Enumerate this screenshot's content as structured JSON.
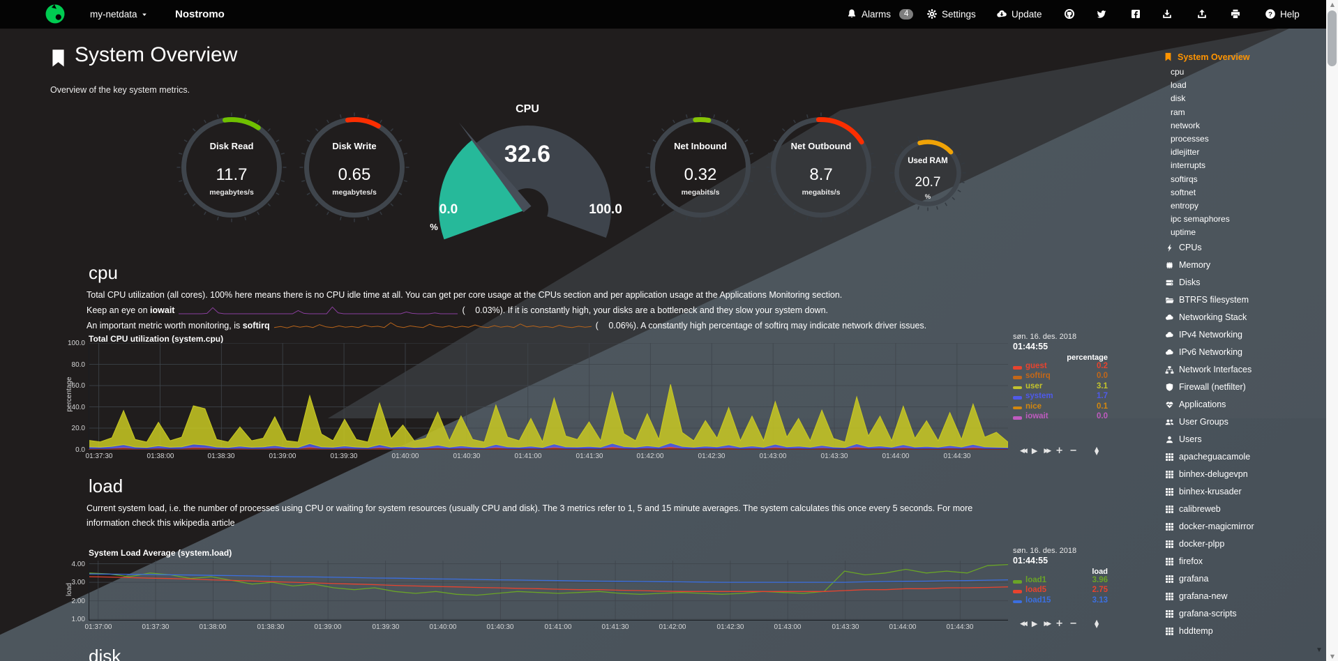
{
  "navbar": {
    "brand_menu_label": "my-netdata",
    "hostname": "Nostromo",
    "items": [
      {
        "name": "alarms",
        "icon": "bell-icon",
        "label": "Alarms",
        "badge": "4"
      },
      {
        "name": "settings",
        "icon": "gear-icon",
        "label": "Settings"
      },
      {
        "name": "update",
        "icon": "cloud-download-icon",
        "label": "Update"
      },
      {
        "name": "github",
        "icon": "github-icon",
        "label": ""
      },
      {
        "name": "twitter",
        "icon": "twitter-icon",
        "label": ""
      },
      {
        "name": "facebook",
        "icon": "facebook-icon",
        "label": ""
      },
      {
        "name": "export-snapshot",
        "icon": "download-icon",
        "label": ""
      },
      {
        "name": "import-snapshot",
        "icon": "upload-icon",
        "label": ""
      },
      {
        "name": "print",
        "icon": "print-icon",
        "label": ""
      },
      {
        "name": "help",
        "icon": "question-icon",
        "label": "Help"
      }
    ]
  },
  "page": {
    "title": "System Overview",
    "subtitle": "Overview of the key system metrics."
  },
  "gauges": [
    {
      "name": "disk-read",
      "title": "Disk Read",
      "value": "11.7",
      "units": "megabytes/s",
      "arc_color": "#6fc000",
      "arc_start": -8,
      "arc_end": 34,
      "small": false
    },
    {
      "name": "disk-write",
      "title": "Disk Write",
      "value": "0.65",
      "units": "megabytes/s",
      "arc_color": "#fb2e01",
      "arc_start": -8,
      "arc_end": 30,
      "small": false
    },
    {
      "name": "net-inbound",
      "title": "Net Inbound",
      "value": "0.32",
      "units": "megabits/s",
      "arc_color": "#85c305",
      "arc_start": -6,
      "arc_end": 10,
      "small": false
    },
    {
      "name": "net-outbound",
      "title": "Net Outbound",
      "value": "8.7",
      "units": "megabits/s",
      "arc_color": "#fb2e01",
      "arc_start": -3,
      "arc_end": 58,
      "small": false
    },
    {
      "name": "used-ram",
      "title": "Used RAM",
      "value": "20.7",
      "units": "%",
      "arc_color": "#f0a306",
      "arc_start": -15,
      "arc_end": 48,
      "small": true
    }
  ],
  "cpu_gauge": {
    "title": "CPU",
    "value": "32.6",
    "min_label": "0.0",
    "max_label": "100.0",
    "units": "%",
    "percent": 32.6,
    "fill_color": "#26b99a",
    "ring_color": "#3e444c",
    "needle_color": "#474e58"
  },
  "cpu_section": {
    "heading": "cpu",
    "p1": "Total CPU utilization (all cores). 100% here means there is no CPU idle time at all. You can get per core usage at the CPUs section and per application usage at the Applications Monitoring section.",
    "p2_pre": "Keep an eye on ",
    "p2_kw": "iowait",
    "p2_open": "(",
    "p2_val": "0.03%",
    "p2_post": "). If it is constantly high, your disks are a bottleneck and they slow your system down.",
    "p3_pre": "An important metric worth monitoring, is ",
    "p3_kw": "softirq",
    "p3_open": "(",
    "p3_val": "0.06%",
    "p3_post": "). A constantly high percentage of softirq may indicate network driver issues."
  },
  "load_section": {
    "heading": "load",
    "p1": "Current system load, i.e. the number of processes using CPU or waiting for system resources (usually CPU and disk). The 3 metrics refer to 1, 5 and 15 minute averages. The system calculates this once every 5 seconds. For more",
    "p2": "information check this wikipedia article"
  },
  "disk_section": {
    "heading": "disk"
  },
  "chart_data": [
    {
      "name": "system-cpu",
      "type": "area",
      "stacked": true,
      "title": "Total CPU utilization (system.cpu)",
      "xlabel": "",
      "ylabel": "percentage",
      "ylim": [
        0,
        100
      ],
      "yticks": [
        {
          "v": 100,
          "label": "100.0"
        },
        {
          "v": 80,
          "label": "80.0"
        },
        {
          "v": 60,
          "label": "60.0"
        },
        {
          "v": 40,
          "label": "40.0"
        },
        {
          "v": 20,
          "label": "20.0"
        },
        {
          "v": 0,
          "label": "0.0"
        }
      ],
      "xtick_labels": [
        "01:37:30",
        "01:38:00",
        "01:38:30",
        "01:39:00",
        "01:39:30",
        "01:40:00",
        "01:40:30",
        "01:41:00",
        "01:41:30",
        "01:42:00",
        "01:42:30",
        "01:43:00",
        "01:43:30",
        "01:44:00",
        "01:44:30"
      ],
      "grid": true,
      "legend_position": "right",
      "legend": {
        "date": "søn. 16. des. 2018",
        "time": "01:44:55",
        "units": "percentage",
        "entries": [
          {
            "name": "guest",
            "value": "0.2",
            "color": "#e8432e"
          },
          {
            "name": "softirq",
            "value": "0.0",
            "color": "#c36718"
          },
          {
            "name": "user",
            "value": "3.1",
            "color": "#c3c32c"
          },
          {
            "name": "system",
            "value": "1.7",
            "color": "#4f5aea"
          },
          {
            "name": "nice",
            "value": "0.1",
            "color": "#d2870f"
          },
          {
            "name": "iowait",
            "value": "0.0",
            "color": "#bf5bbf"
          }
        ]
      },
      "series": [
        {
          "name": "guest",
          "color": "#e8432e",
          "values": [
            1,
            0.8,
            1.2,
            2,
            0.9,
            0.7,
            1.5,
            0.8,
            1,
            2.2,
            1.8,
            0.9,
            0.7,
            1.3,
            0.8,
            1,
            1.6,
            0.8,
            0.7,
            2.5,
            1,
            0.8,
            1.4,
            0.9,
            0.7,
            2,
            0.8,
            1.2,
            0.7,
            1,
            1.8,
            0.8,
            1.5,
            0.9,
            0.7,
            2.1,
            1,
            0.8,
            1.3,
            0.7,
            2.3,
            1,
            0.9,
            1.2,
            0.8,
            2.6,
            1.1,
            0.8,
            1.5,
            0.9,
            2.8,
            1.2,
            0.8,
            1.3,
            1,
            1.9,
            0.8,
            1.4,
            0.8,
            2.2,
            1,
            1.3,
            0.8,
            1.7,
            0.9,
            0.7,
            2.4,
            1,
            1.4,
            0.8,
            2,
            0.9,
            1.2,
            0.8,
            1.6,
            0.9,
            2.1,
            1,
            0.8,
            0.2
          ]
        },
        {
          "name": "system",
          "color": "#4f5aea",
          "values": [
            1.5,
            1.3,
            1.7,
            2.5,
            1.4,
            1.2,
            2,
            1.3,
            1.5,
            2.8,
            2.4,
            1.4,
            1.2,
            1.8,
            1.3,
            1.5,
            2.1,
            1.3,
            1.2,
            3,
            1.5,
            1.3,
            1.9,
            1.4,
            1.2,
            2.5,
            1.3,
            1.7,
            1.2,
            1.5,
            2.3,
            1.3,
            2,
            1.4,
            1.2,
            2.6,
            1.5,
            1.3,
            1.8,
            1.2,
            2.8,
            1.5,
            1.4,
            1.7,
            1.3,
            3.1,
            1.6,
            1.3,
            2,
            1.4,
            3.3,
            1.7,
            1.3,
            1.8,
            1.5,
            2.4,
            1.3,
            1.9,
            1.3,
            2.7,
            1.5,
            1.8,
            1.3,
            2.2,
            1.4,
            1.2,
            2.9,
            1.5,
            1.9,
            1.3,
            2.5,
            1.4,
            1.7,
            1.3,
            2.1,
            1.4,
            2.6,
            1.5,
            1.3,
            1.7
          ]
        },
        {
          "name": "user",
          "color": "#c9c922",
          "values": [
            6,
            5,
            8,
            32,
            7,
            5,
            22,
            6,
            9,
            36,
            34,
            7,
            5,
            18,
            6,
            8,
            27,
            6,
            5,
            45,
            12,
            6,
            25,
            7,
            5,
            39,
            8,
            20,
            6,
            8,
            31,
            6,
            28,
            7,
            5,
            37,
            9,
            6,
            26,
            5,
            43,
            10,
            7,
            23,
            6,
            48,
            12,
            6,
            30,
            7,
            55,
            13,
            6,
            24,
            8,
            35,
            6,
            28,
            6,
            40,
            9,
            26,
            6,
            33,
            8,
            5,
            44,
            10,
            28,
            6,
            36,
            8,
            24,
            6,
            31,
            7,
            38,
            9,
            14,
            5
          ]
        }
      ]
    },
    {
      "name": "system-load",
      "type": "line",
      "stacked": false,
      "title": "System Load Average (system.load)",
      "xlabel": "",
      "ylabel": "load",
      "ylim": [
        0.93,
        4.17
      ],
      "yticks": [
        {
          "v": 4,
          "label": "4.00"
        },
        {
          "v": 3,
          "label": "3.00"
        },
        {
          "v": 2,
          "label": "2.00"
        },
        {
          "v": 1,
          "label": "1.00"
        }
      ],
      "xtick_labels": [
        "01:37:00",
        "01:37:30",
        "01:38:00",
        "01:38:30",
        "01:39:00",
        "01:39:30",
        "01:40:00",
        "01:40:30",
        "01:41:00",
        "01:41:30",
        "01:42:00",
        "01:42:30",
        "01:43:00",
        "01:43:30",
        "01:44:00",
        "01:44:30"
      ],
      "grid": true,
      "legend_position": "right",
      "legend": {
        "date": "søn. 16. des. 2018",
        "time": "01:44:55",
        "units": "load",
        "entries": [
          {
            "name": "load1",
            "value": "3.96",
            "color": "#6aa427"
          },
          {
            "name": "load5",
            "value": "2.75",
            "color": "#e8432e"
          },
          {
            "name": "load15",
            "value": "3.13",
            "color": "#3b6fe0"
          }
        ]
      },
      "series": [
        {
          "name": "load1",
          "color": "#6aa427",
          "values": [
            3.5,
            3.45,
            3.3,
            3.5,
            3.4,
            3.2,
            3.3,
            3.1,
            2.9,
            3.0,
            2.8,
            2.9,
            2.7,
            2.6,
            2.7,
            2.5,
            2.4,
            2.5,
            2.35,
            2.3,
            2.4,
            2.5,
            2.45,
            2.4,
            2.45,
            2.5,
            2.4,
            2.35,
            2.4,
            2.45,
            2.4,
            2.35,
            2.4,
            2.5,
            2.45,
            2.4,
            2.5,
            3.6,
            3.4,
            3.5,
            3.7,
            3.5,
            3.6,
            3.5,
            3.9,
            3.96
          ]
        },
        {
          "name": "load5",
          "color": "#e8432e",
          "values": [
            3.3,
            3.28,
            3.25,
            3.22,
            3.2,
            3.17,
            3.13,
            3.1,
            3.07,
            3.03,
            3.0,
            2.97,
            2.93,
            2.9,
            2.87,
            2.83,
            2.8,
            2.77,
            2.75,
            2.72,
            2.7,
            2.67,
            2.65,
            2.62,
            2.6,
            2.6,
            2.57,
            2.55,
            2.52,
            2.5,
            2.5,
            2.5,
            2.5,
            2.5,
            2.5,
            2.5,
            2.5,
            2.55,
            2.6,
            2.6,
            2.65,
            2.65,
            2.7,
            2.7,
            2.72,
            2.75
          ]
        },
        {
          "name": "load15",
          "color": "#3b6fe0",
          "values": [
            3.45,
            3.44,
            3.43,
            3.42,
            3.4,
            3.39,
            3.37,
            3.36,
            3.34,
            3.32,
            3.3,
            3.29,
            3.27,
            3.25,
            3.23,
            3.22,
            3.2,
            3.18,
            3.17,
            3.15,
            3.13,
            3.12,
            3.1,
            3.09,
            3.07,
            3.06,
            3.05,
            3.04,
            3.03,
            3.02,
            3.01,
            3.0,
            3.0,
            3.0,
            3.0,
            3.0,
            3.0,
            3.0,
            3.02,
            3.04,
            3.05,
            3.06,
            3.08,
            3.09,
            3.11,
            3.13
          ]
        }
      ]
    },
    {
      "name": "iowait-sparkline",
      "type": "sparkline",
      "color": "#8a3f9e",
      "values": [
        0,
        0,
        0,
        0,
        0,
        0.2,
        3,
        0.4,
        0,
        0,
        0,
        0,
        0,
        0,
        0,
        0,
        0,
        0,
        0,
        0,
        0,
        1.6,
        0.2,
        0,
        0,
        0,
        0,
        3.4,
        0.5,
        0,
        0,
        0,
        0,
        0,
        0,
        0,
        0,
        0,
        0,
        0,
        0.9,
        0.2,
        0,
        0,
        0,
        0.4,
        0,
        0,
        0,
        0
      ]
    },
    {
      "name": "softirq-sparkline",
      "type": "sparkline",
      "color": "#b8641a",
      "values": [
        0.5,
        0.8,
        0.4,
        1,
        0.6,
        0.9,
        0.5,
        1.4,
        0.7,
        0.5,
        1,
        0.6,
        0.8,
        0.5,
        1.2,
        0.7,
        0.9,
        0.5,
        2,
        0.8,
        0.5,
        1,
        0.7,
        0.5,
        1.5,
        0.8,
        0.6,
        1,
        0.5,
        0.9,
        0.6,
        1.3,
        0.7,
        0.5,
        1.1,
        0.6,
        0.9,
        0.5,
        1.6,
        0.7,
        1,
        0.6,
        0.8,
        0.5,
        1.2,
        0.7,
        0.5,
        0.9,
        0.6,
        0.8
      ]
    }
  ],
  "toolbar": {
    "buttons": [
      "pan-backward",
      "play",
      "pan-forward",
      "zoom-in",
      "zoom-out",
      "resize"
    ]
  },
  "sidebar": {
    "accent_color": "#ff9400",
    "active": {
      "label": "System Overview",
      "icon": "bookmark-icon"
    },
    "subitems": [
      "cpu",
      "load",
      "disk",
      "ram",
      "network",
      "processes",
      "idlejitter",
      "interrupts",
      "softirqs",
      "softnet",
      "entropy",
      "ipc semaphores",
      "uptime"
    ],
    "sections": [
      {
        "icon": "bolt-icon",
        "label": "CPUs"
      },
      {
        "icon": "memory-icon",
        "label": "Memory"
      },
      {
        "icon": "disks-icon",
        "label": "Disks"
      },
      {
        "icon": "folder-icon",
        "label": "BTRFS filesystem"
      },
      {
        "icon": "cloud-icon",
        "label": "Networking Stack"
      },
      {
        "icon": "cloud-icon",
        "label": "IPv4 Networking"
      },
      {
        "icon": "cloud-icon",
        "label": "IPv6 Networking"
      },
      {
        "icon": "sitemap-icon",
        "label": "Network Interfaces"
      },
      {
        "icon": "shield-icon",
        "label": "Firewall (netfilter)"
      },
      {
        "icon": "heartbeat-icon",
        "label": "Applications"
      },
      {
        "icon": "users-icon",
        "label": "User Groups"
      },
      {
        "icon": "user-icon",
        "label": "Users"
      },
      {
        "icon": "grid-icon",
        "label": "apacheguacamole"
      },
      {
        "icon": "grid-icon",
        "label": "binhex-delugevpn"
      },
      {
        "icon": "grid-icon",
        "label": "binhex-krusader"
      },
      {
        "icon": "grid-icon",
        "label": "calibreweb"
      },
      {
        "icon": "grid-icon",
        "label": "docker-magicmirror"
      },
      {
        "icon": "grid-icon",
        "label": "docker-plpp"
      },
      {
        "icon": "grid-icon",
        "label": "firefox"
      },
      {
        "icon": "grid-icon",
        "label": "grafana"
      },
      {
        "icon": "grid-icon",
        "label": "grafana-new"
      },
      {
        "icon": "grid-icon",
        "label": "grafana-scripts"
      },
      {
        "icon": "grid-icon",
        "label": "hddtemp"
      }
    ]
  }
}
